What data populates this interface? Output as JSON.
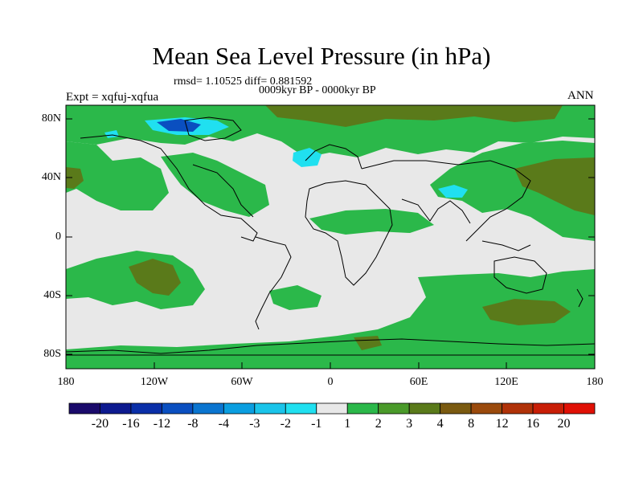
{
  "title": "Mean Sea Level Pressure (in hPa)",
  "stats": "rmsd= 1.10525  diff= 0.881592",
  "period": "0009kyr BP - 0000kyr BP",
  "experiment": "Expt = xqfuj-xqfua",
  "season": "ANN",
  "lat_labels": [
    "80N",
    "40N",
    "0",
    "40S",
    "80S"
  ],
  "lon_labels": [
    "180",
    "120W",
    "60W",
    "0",
    "60E",
    "120E",
    "180"
  ],
  "colorbar": {
    "labels": [
      "-20",
      "-16",
      "-12",
      "-8",
      "-4",
      "-3",
      "-2",
      "-1",
      "1",
      "2",
      "3",
      "4",
      "8",
      "12",
      "16",
      "20"
    ],
    "colors": [
      "#1a0a6b",
      "#0d1a8f",
      "#0a2fa8",
      "#0a4fc0",
      "#0a75d0",
      "#0a9ee0",
      "#1ac4ea",
      "#20e0f0",
      "#e8e8e8",
      "#2bb84a",
      "#4a9a2a",
      "#5a7a1a",
      "#7a5a10",
      "#9a4a0c",
      "#b03208",
      "#c81e06",
      "#e01005"
    ]
  },
  "legend_colors": {
    "neutral": "#e8e8e8",
    "green": "#2bb84a",
    "olive": "#5a7a1a",
    "cyan": "#20e0f0",
    "blue": "#0a4fc0"
  }
}
